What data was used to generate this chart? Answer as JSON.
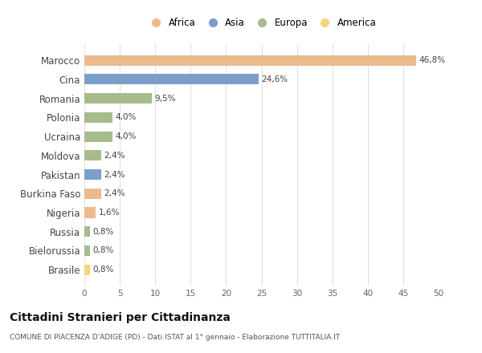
{
  "countries": [
    "Marocco",
    "Cina",
    "Romania",
    "Polonia",
    "Ucraina",
    "Moldova",
    "Pakistan",
    "Burkina Faso",
    "Nigeria",
    "Russia",
    "Bielorussia",
    "Brasile"
  ],
  "values": [
    46.8,
    24.6,
    9.5,
    4.0,
    4.0,
    2.4,
    2.4,
    2.4,
    1.6,
    0.8,
    0.8,
    0.8
  ],
  "labels": [
    "46,8%",
    "24,6%",
    "9,5%",
    "4,0%",
    "4,0%",
    "2,4%",
    "2,4%",
    "2,4%",
    "1,6%",
    "0,8%",
    "0,8%",
    "0,8%"
  ],
  "colors": [
    "#EDBA8C",
    "#7B9EC9",
    "#A8BB8C",
    "#A8BB8C",
    "#A8BB8C",
    "#A8BB8C",
    "#7B9EC9",
    "#EDBA8C",
    "#EDBA8C",
    "#A8BB8C",
    "#A8BB8C",
    "#F5D57A"
  ],
  "legend_labels": [
    "Africa",
    "Asia",
    "Europa",
    "America"
  ],
  "legend_colors": [
    "#EDBA8C",
    "#7B9EC9",
    "#A8BB8C",
    "#F5D57A"
  ],
  "title": "Cittadini Stranieri per Cittadinanza",
  "subtitle": "COMUNE DI PIACENZA D'ADIGE (PD) - Dati ISTAT al 1° gennaio - Elaborazione TUTTITALIA.IT",
  "xlim": [
    0,
    50
  ],
  "xticks": [
    0,
    5,
    10,
    15,
    20,
    25,
    30,
    35,
    40,
    45,
    50
  ],
  "background_color": "#ffffff",
  "grid_color": "#e0e0e0"
}
